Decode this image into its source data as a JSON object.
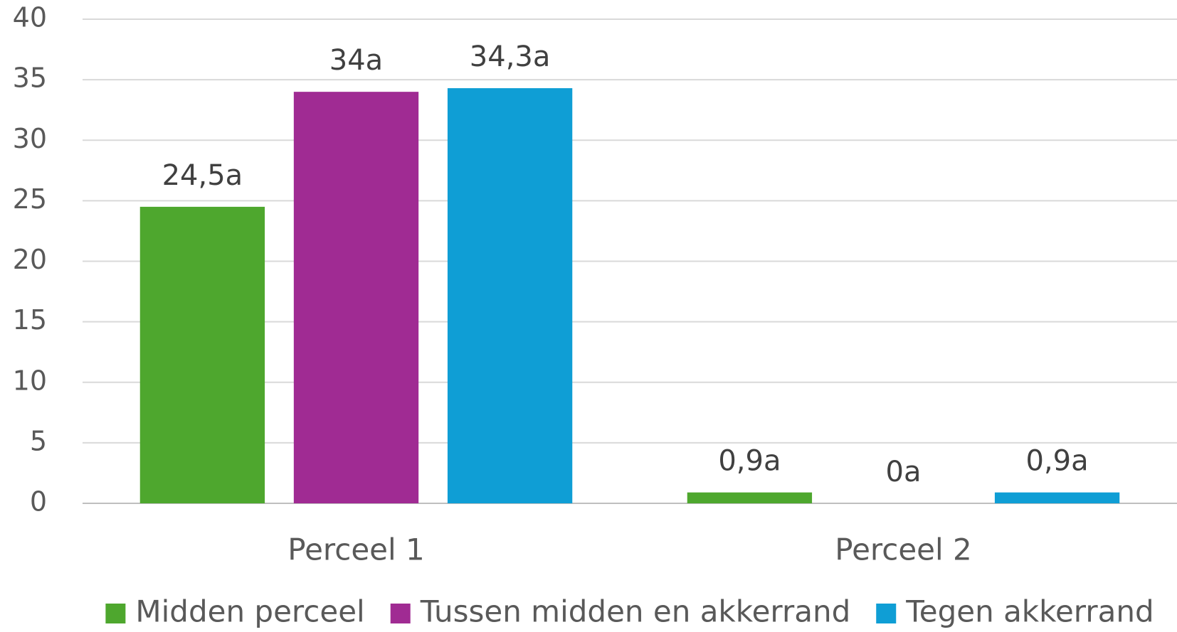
{
  "chart_data": {
    "type": "bar",
    "categories": [
      "Perceel 1",
      "Perceel 2"
    ],
    "series": [
      {
        "name": "Midden perceel",
        "color": "#4ea72e",
        "values": [
          24.5,
          0.9
        ],
        "value_labels": [
          "24,5a",
          "0,9a"
        ]
      },
      {
        "name": "Tussen midden en akkerrand",
        "color": "#a02b93",
        "values": [
          34,
          0
        ],
        "value_labels": [
          "34a",
          "0a"
        ]
      },
      {
        "name": "Tegen akkerrand",
        "color": "#0f9ed5",
        "values": [
          34.3,
          0.9
        ],
        "value_labels": [
          "34,3a",
          "0,9a"
        ]
      }
    ],
    "ylim": [
      0,
      40
    ],
    "yticks": [
      0,
      5,
      10,
      15,
      20,
      25,
      30,
      35,
      40
    ],
    "grid": true,
    "legend": "bottom"
  }
}
